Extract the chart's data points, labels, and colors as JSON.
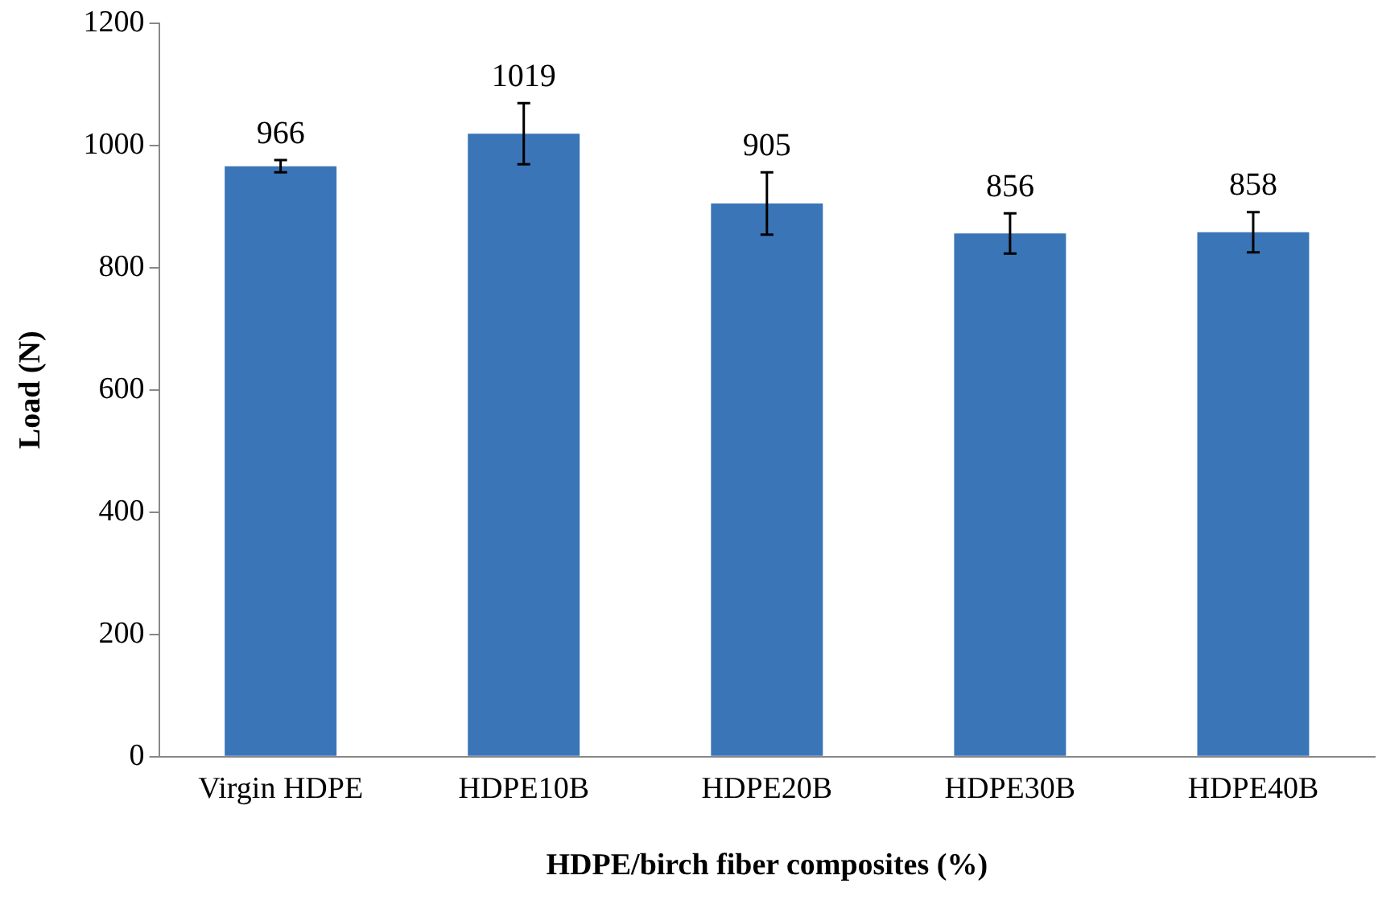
{
  "chart_data": {
    "type": "bar",
    "xlabel": "HDPE/birch fiber composites (%)",
    "ylabel": "Load (N)",
    "categories": [
      "Virgin HDPE",
      "HDPE10B",
      "HDPE20B",
      "HDPE30B",
      "HDPE40B"
    ],
    "values": [
      966,
      1019,
      905,
      856,
      858
    ],
    "errors": [
      10,
      50,
      51,
      33,
      33
    ],
    "color": "#3a75b8",
    "ylim": [
      0,
      1200
    ],
    "yticks": [
      0,
      200,
      400,
      600,
      800,
      1000,
      1200
    ],
    "grid": false,
    "legend": false,
    "data_labels": true
  }
}
